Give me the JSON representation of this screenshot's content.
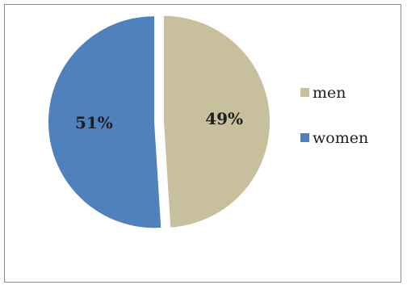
{
  "chart_data": {
    "type": "pie",
    "slices": [
      {
        "label": "men",
        "value": 49,
        "display": "49%",
        "color": "#c8bf9c"
      },
      {
        "label": "women",
        "value": 51,
        "display": "51%",
        "color": "#4f81bd"
      }
    ],
    "legend_position": "right",
    "exploded": true
  }
}
